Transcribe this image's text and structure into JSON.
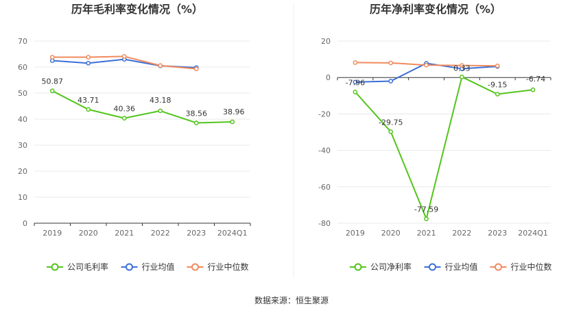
{
  "source_text": "数据来源：恒生聚源",
  "chart_data": [
    {
      "type": "line",
      "title": "历年毛利率变化情况（%）",
      "categories": [
        "2019",
        "2020",
        "2021",
        "2022",
        "2023",
        "2024Q1"
      ],
      "ylim": [
        0,
        70
      ],
      "yticks": [
        0,
        10,
        20,
        30,
        40,
        50,
        60,
        70
      ],
      "grid": true,
      "legend_position": "bottom",
      "series": [
        {
          "name": "公司毛利率",
          "color": "#52c41a",
          "values": [
            50.87,
            43.71,
            40.36,
            43.18,
            38.56,
            38.96
          ],
          "labels": [
            "50.87",
            "43.71",
            "40.36",
            "43.18",
            "38.56",
            "38.96"
          ]
        },
        {
          "name": "行业均值",
          "color": "#3b6fd6",
          "values": [
            62.5,
            61.5,
            63.0,
            60.5,
            59.8,
            null
          ]
        },
        {
          "name": "行业中位数",
          "color": "#f08a5d",
          "values": [
            63.8,
            63.8,
            64.1,
            60.6,
            59.3,
            null
          ]
        }
      ]
    },
    {
      "type": "line",
      "title": "历年净利率变化情况（%）",
      "categories": [
        "2019",
        "2020",
        "2021",
        "2022",
        "2023",
        "2024Q1"
      ],
      "ylim": [
        -80,
        20
      ],
      "yticks": [
        -80,
        -60,
        -40,
        -20,
        0,
        20
      ],
      "grid": true,
      "legend_position": "bottom",
      "series": [
        {
          "name": "公司净利率",
          "color": "#52c41a",
          "values": [
            -7.96,
            -29.75,
            -77.59,
            0.33,
            -9.15,
            -6.74
          ],
          "labels": [
            "-7.96",
            "-29.75",
            "-77.59",
            "0.33",
            "-9.15",
            "-6.74"
          ]
        },
        {
          "name": "行业均值",
          "color": "#3b6fd6",
          "values": [
            -2.5,
            -2.0,
            7.8,
            4.8,
            6.1,
            null
          ]
        },
        {
          "name": "行业中位数",
          "color": "#f08a5d",
          "values": [
            8.2,
            8.0,
            6.8,
            6.6,
            6.4,
            null
          ]
        }
      ]
    }
  ]
}
